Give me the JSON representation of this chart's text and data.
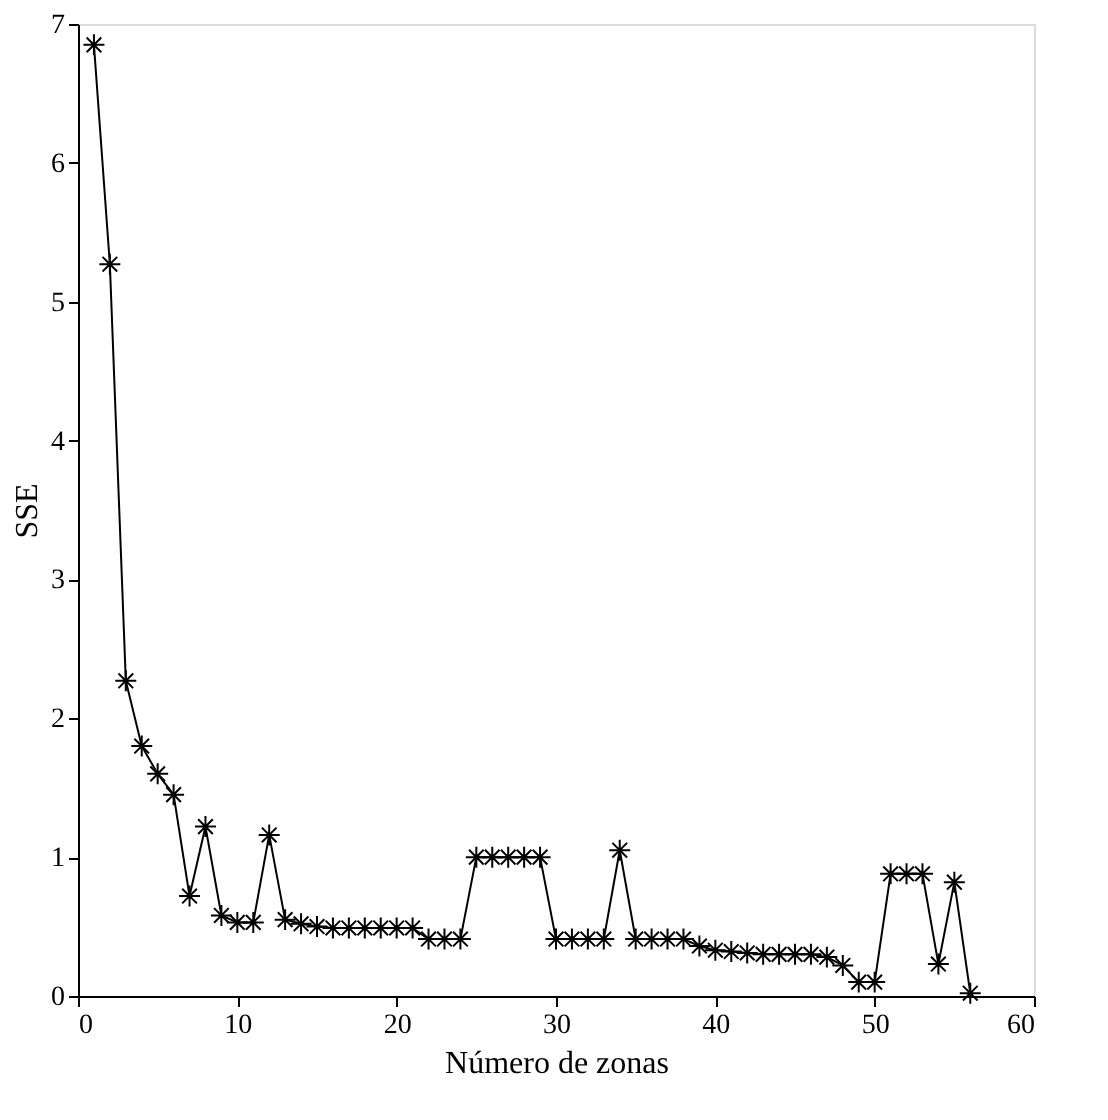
{
  "chart_data": {
    "type": "line",
    "xlabel": "Número de zonas",
    "ylabel": "SSE",
    "x": [
      1,
      2,
      3,
      4,
      5,
      6,
      7,
      8,
      9,
      10,
      11,
      12,
      13,
      14,
      15,
      16,
      17,
      18,
      19,
      20,
      21,
      22,
      23,
      24,
      25,
      26,
      27,
      28,
      29,
      30,
      31,
      32,
      33,
      34,
      35,
      36,
      37,
      38,
      39,
      40,
      41,
      42,
      43,
      44,
      45,
      46,
      47,
      48,
      49,
      50,
      51,
      52,
      53,
      54,
      55,
      56
    ],
    "series": [
      {
        "color": "#000000",
        "values": [
          6.85,
          5.27,
          2.27,
          1.8,
          1.6,
          1.45,
          0.72,
          1.22,
          0.58,
          0.53,
          0.53,
          1.16,
          0.55,
          0.52,
          0.5,
          0.49,
          0.49,
          0.49,
          0.49,
          0.49,
          0.49,
          0.41,
          0.41,
          0.41,
          1.0,
          1.0,
          1.0,
          1.0,
          1.0,
          0.41,
          0.41,
          0.41,
          0.41,
          1.05,
          0.41,
          0.41,
          0.41,
          0.41,
          0.36,
          0.33,
          0.32,
          0.31,
          0.3,
          0.3,
          0.3,
          0.3,
          0.28,
          0.22,
          0.1,
          0.1,
          0.88,
          0.88,
          0.88,
          0.23,
          0.82,
          0.02
        ]
      }
    ],
    "xlim": [
      0,
      60
    ],
    "xticks": [
      0,
      10,
      20,
      30,
      40,
      50,
      60
    ],
    "ylim": [
      0,
      7
    ],
    "yticks": [
      0,
      1,
      2,
      3,
      4,
      5,
      6,
      7
    ],
    "marker": "cross",
    "line_style": "solid",
    "grid": false
  }
}
